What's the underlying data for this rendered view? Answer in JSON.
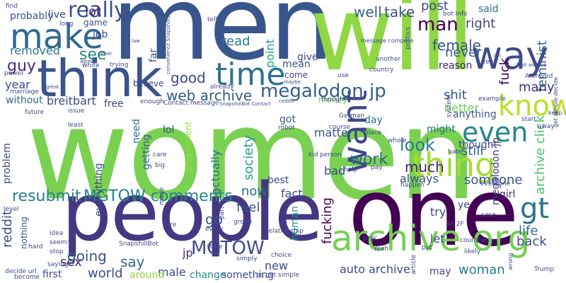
{
  "cloud": {
    "background": "#ffffff",
    "words": [
      {
        "text": "women",
        "color": "#7ad151"
      },
      {
        "text": "men",
        "color": "#39568c"
      },
      {
        "text": "will",
        "color": "#8fd744"
      },
      {
        "text": "one",
        "color": "#440154"
      },
      {
        "text": "people",
        "color": "#453781"
      },
      {
        "text": "think",
        "color": "#3b528b"
      },
      {
        "text": "make",
        "color": "#31688e"
      },
      {
        "text": "way",
        "color": "#3e4c8a"
      },
      {
        "text": "time",
        "color": "#2d718e"
      },
      {
        "text": "want",
        "color": "#3e4989"
      },
      {
        "text": "archive org",
        "color": "#75d054"
      },
      {
        "text": "thing",
        "color": "#a5db36"
      },
      {
        "text": "even",
        "color": "#24868e"
      },
      {
        "text": "know",
        "color": "#bddf26"
      },
      {
        "text": "megalodon jp",
        "color": "#355f8d"
      },
      {
        "text": "gt",
        "color": "#2c728e"
      },
      {
        "text": "really",
        "color": "#3b528b"
      },
      {
        "text": "MGTOW comments",
        "color": "#25838e"
      },
      {
        "text": "MGTOW",
        "color": "#3f4889"
      },
      {
        "text": "resubmit",
        "color": "#287d8e"
      },
      {
        "text": "man",
        "color": "#440154"
      },
      {
        "text": "web archive",
        "color": "#375a8c"
      },
      {
        "text": "work",
        "color": "#33638d"
      },
      {
        "text": "look",
        "color": "#2a788e"
      },
      {
        "text": "much",
        "color": "#482475"
      },
      {
        "text": "lot",
        "color": "#482878"
      },
      {
        "text": "see",
        "color": "#26828e"
      },
      {
        "text": "guy",
        "color": "#472d7b"
      },
      {
        "text": "removed",
        "color": "#2a788e"
      },
      {
        "text": "good",
        "color": "#3e4989"
      },
      {
        "text": "well",
        "color": "#33638d"
      },
      {
        "text": "take",
        "color": "#3b528b"
      },
      {
        "text": "post",
        "color": "#3e4c8a"
      },
      {
        "text": "female",
        "color": "#3b528b"
      },
      {
        "text": "feminist",
        "color": "#355f8d"
      },
      {
        "text": "never",
        "color": "#38588c"
      },
      {
        "text": "right",
        "color": "#3f4788"
      },
      {
        "text": "archive click",
        "color": "#4ac16d"
      },
      {
        "text": "megalodon jp",
        "color": "#443983"
      },
      {
        "text": "fuck",
        "color": "#440154"
      },
      {
        "text": "reason",
        "color": "#481d6f"
      },
      {
        "text": "breitbart",
        "color": "#404688"
      },
      {
        "text": "read",
        "color": "#2a788e"
      },
      {
        "text": "point",
        "color": "#1f9e89"
      },
      {
        "text": "mean",
        "color": "#3b528b"
      },
      {
        "text": "many",
        "color": "#463480"
      },
      {
        "text": "said",
        "color": "#2c728e"
      },
      {
        "text": "shit",
        "color": "#3b528b"
      },
      {
        "text": "better",
        "color": "#6ece58"
      },
      {
        "text": "society",
        "color": "#1fa188"
      },
      {
        "text": "year",
        "color": "#3e4989"
      },
      {
        "text": "without",
        "color": "#31688e"
      },
      {
        "text": "believe",
        "color": "#414487"
      },
      {
        "text": "free",
        "color": "#3e4989"
      },
      {
        "text": "need",
        "color": "#2d708e"
      },
      {
        "text": "getting",
        "color": "#365c8d"
      },
      {
        "text": "government",
        "color": "#a0da39"
      },
      {
        "text": "actually",
        "color": "#2d718e"
      },
      {
        "text": "now",
        "color": "#31688e"
      },
      {
        "text": "fact",
        "color": "#3e4989"
      },
      {
        "text": "best",
        "color": "#3e4989"
      },
      {
        "text": "feel",
        "color": "#3b528b"
      },
      {
        "text": "someone",
        "color": "#3b528b"
      },
      {
        "text": "always",
        "color": "#3e4c8a"
      },
      {
        "text": "life",
        "color": "#31688e"
      },
      {
        "text": "back",
        "color": "#3e4989"
      },
      {
        "text": "woman",
        "color": "#2a788e"
      },
      {
        "text": "auto archive",
        "color": "#3e4989"
      },
      {
        "text": "fucking",
        "color": "#440154"
      },
      {
        "text": "sex",
        "color": "#482878"
      },
      {
        "text": "say",
        "color": "#31688e"
      },
      {
        "text": "going",
        "color": "#3b528b"
      },
      {
        "text": "world",
        "color": "#3e4989"
      },
      {
        "text": "male",
        "color": "#414487"
      },
      {
        "text": "go",
        "color": "#3b528b"
      },
      {
        "text": "jp",
        "color": "#472c7a"
      },
      {
        "text": "reddit",
        "color": "#3e4989"
      },
      {
        "text": "anything",
        "color": "#38588c"
      },
      {
        "text": "might",
        "color": "#2c728e"
      },
      {
        "text": "thought",
        "color": "#3e4989"
      },
      {
        "text": "still",
        "color": "#355f8d"
      },
      {
        "text": "girl",
        "color": "#482575"
      },
      {
        "text": "try",
        "color": "#3e4989"
      },
      {
        "text": "let",
        "color": "#3e4989"
      },
      {
        "text": "matter",
        "color": "#3b528b"
      },
      {
        "text": "day",
        "color": "#2d718e"
      },
      {
        "text": "bad",
        "color": "#3e4989"
      },
      {
        "text": "money",
        "color": "#6ece58"
      },
      {
        "text": "got",
        "color": "#38588c"
      },
      {
        "text": "new",
        "color": "#3e4989"
      },
      {
        "text": "human",
        "color": "#1f9e89"
      },
      {
        "text": "change",
        "color": "#21908d"
      },
      {
        "text": "something",
        "color": "#3e4989"
      },
      {
        "text": "around",
        "color": "#93d741"
      },
      {
        "text": "may",
        "color": "#3e4989"
      },
      {
        "text": "first",
        "color": "#3e4989"
      },
      {
        "text": "problem",
        "color": "#3e4989"
      },
      {
        "text": "nothing",
        "color": "#3b528b"
      },
      {
        "text": "everything",
        "color": "#3e4989"
      },
      {
        "text": "lol",
        "color": "#3e4989"
      },
      {
        "text": "job",
        "color": "#3e4989"
      },
      {
        "text": "probably",
        "color": "#3b528b"
      },
      {
        "text": "live",
        "color": "#3e4989"
      },
      {
        "text": "game",
        "color": "#3e4989"
      },
      {
        "text": "far",
        "color": "#3e4989"
      },
      {
        "text": "give",
        "color": "#3e4989"
      },
      {
        "text": "come",
        "color": "#3e4989"
      },
      {
        "text": "ye",
        "color": "#3e4989"
      },
      {
        "text": "keep",
        "color": "#3e4989"
      },
      {
        "text": "find",
        "color": "#3e4989"
      },
      {
        "text": "incel",
        "color": "#3e4989"
      },
      {
        "text": "saying",
        "color": "#3e4989"
      },
      {
        "text": "decide url",
        "color": "#3e4989"
      },
      {
        "text": "SnapshillBot",
        "color": "#3e4989"
      },
      {
        "text": "state",
        "color": "#3e4989"
      },
      {
        "text": "every",
        "color": "#3e4989"
      },
      {
        "text": "sure",
        "color": "#3e4989"
      },
      {
        "text": "Trump",
        "color": "#3e4989"
      },
      {
        "text": "become",
        "color": "#3e4989"
      },
      {
        "text": "stop",
        "color": "#3e4989"
      },
      {
        "text": "hard",
        "color": "#3e4989"
      },
      {
        "text": "seem",
        "color": "#3e4989"
      },
      {
        "text": "hate",
        "color": "#3e4989"
      },
      {
        "text": "robot",
        "color": "#3e4989"
      },
      {
        "text": "kid",
        "color": "#3e4989"
      },
      {
        "text": "person",
        "color": "#3e4989"
      },
      {
        "text": "pay",
        "color": "#3e4989"
      },
      {
        "text": "real",
        "color": "#3e4989"
      },
      {
        "text": "start",
        "color": "#3e4989"
      },
      {
        "text": "away",
        "color": "#3e4989"
      },
      {
        "text": "Contact message",
        "color": "#3e4989"
      },
      {
        "text": "jp pc",
        "color": "#3e4989"
      },
      {
        "text": "3A 2F",
        "color": "#3e4989"
      },
      {
        "text": "use",
        "color": "#3e4989"
      },
      {
        "text": "put",
        "color": "#3e4989"
      },
      {
        "text": "another",
        "color": "#3e4989"
      },
      {
        "text": "place",
        "color": "#3e4989"
      },
      {
        "text": "whole",
        "color": "#3e4989"
      },
      {
        "text": "though",
        "color": "#3e4989"
      },
      {
        "text": "issue",
        "color": "#3e4989"
      },
      {
        "text": "future",
        "color": "#3e4989"
      },
      {
        "text": "made",
        "color": "#3e4989"
      },
      {
        "text": "bot Info",
        "color": "#3e4989"
      },
      {
        "text": "tell",
        "color": "#3e4989"
      },
      {
        "text": "long",
        "color": "#3e4989"
      },
      {
        "text": "trying",
        "color": "#3e4989"
      },
      {
        "text": "white",
        "color": "#3e4989"
      },
      {
        "text": "country",
        "color": "#3e4989"
      },
      {
        "text": "Archived",
        "color": "#3e4989"
      },
      {
        "text": "get simple decide",
        "color": "#3e4989"
      },
      {
        "text": "example",
        "color": "#3e4989"
      },
      {
        "text": "power",
        "color": "#3e4989"
      },
      {
        "text": "marriage",
        "color": "#3e4989"
      },
      {
        "text": "already",
        "color": "#3e4989"
      },
      {
        "text": "simply",
        "color": "#3e4989"
      },
      {
        "text": "choice",
        "color": "#3e4989"
      },
      {
        "text": "article",
        "color": "#3e4989"
      },
      {
        "text": "relationship",
        "color": "#3e4989"
      },
      {
        "text": "likely",
        "color": "#3e4989"
      },
      {
        "text": "countries",
        "color": "#3e4989"
      },
      {
        "text": "everyone",
        "color": "#3e4989"
      },
      {
        "text": "happen",
        "color": "#3e4989"
      },
      {
        "text": "idea",
        "color": "#3e4989"
      },
      {
        "text": "level",
        "color": "#3e4989"
      },
      {
        "text": "group",
        "color": "#3e4989"
      },
      {
        "text": "part",
        "color": "#3e4989"
      },
      {
        "text": "big",
        "color": "#3e4989"
      },
      {
        "text": "care",
        "color": "#3e4989"
      },
      {
        "text": "course",
        "color": "#3e4989"
      },
      {
        "text": "least",
        "color": "#3e4989"
      },
      {
        "text": "German",
        "color": "#3e4989"
      },
      {
        "text": "system",
        "color": "#3e4989"
      },
      {
        "text": "enough",
        "color": "#3e4989"
      },
      {
        "text": "wrong",
        "color": "#3e4989"
      },
      {
        "text": "case",
        "color": "#3e4989"
      },
      {
        "text": "Yeah",
        "color": "#3e4989"
      },
      {
        "text": "help",
        "color": "#3e4989"
      },
      {
        "text": "pc get simple",
        "color": "#3e4989"
      },
      {
        "text": "politics",
        "color": "#3e4989"
      },
      {
        "text": "convenience Snapshots",
        "color": "#3e4989"
      },
      {
        "text": "message compose",
        "color": "#3e4989"
      },
      {
        "text": "SnapshillBot Contact",
        "color": "#3e4989"
      },
      {
        "text": "Post archive",
        "color": "#3e4989"
      },
      {
        "text": "ceddit",
        "color": "#3e4989"
      },
      {
        "text": "maybe",
        "color": "#3e4989"
      },
      {
        "text": "agree",
        "color": "#3e4989"
      },
      {
        "text": "other",
        "color": "#3e4989"
      },
      {
        "text": "great",
        "color": "#3e4989"
      },
      {
        "text": "law",
        "color": "#3e4989"
      },
      {
        "text": "Oh",
        "color": "#3e4989"
      }
    ]
  }
}
